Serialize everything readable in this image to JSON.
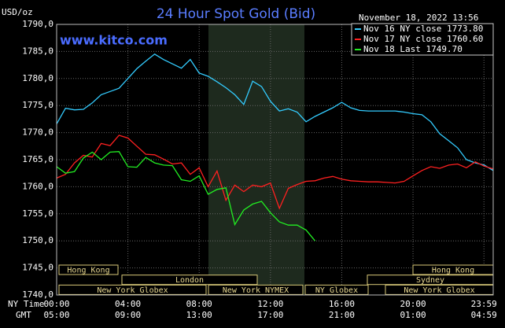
{
  "chart_data": {
    "type": "line",
    "title": "24 Hour Spot Gold (Bid)",
    "unit_label": "USD/oz",
    "timestamp": "November 18, 2022 13:56",
    "watermark": "www.kitco.com",
    "row_labels": [
      "NY Time",
      "GMT"
    ],
    "x": [
      0,
      0.5,
      1,
      1.5,
      2,
      2.5,
      3,
      3.5,
      4,
      4.5,
      5,
      5.5,
      6,
      6.5,
      7,
      7.5,
      8,
      8.5,
      9,
      9.5,
      10,
      10.5,
      11,
      11.5,
      12,
      12.5,
      13,
      13.5,
      14,
      14.5,
      15,
      15.5,
      16,
      16.5,
      17,
      17.5,
      18,
      18.5,
      19,
      19.5,
      20,
      20.5,
      21,
      21.5,
      22,
      22.5,
      23,
      23.5,
      24,
      24.5
    ],
    "xlim": [
      0,
      24.5
    ],
    "xticks": [
      {
        "value": 0,
        "label": "00:00"
      },
      {
        "value": 4,
        "label": "04:00"
      },
      {
        "value": 8,
        "label": "08:00"
      },
      {
        "value": 12,
        "label": "12:00"
      },
      {
        "value": 16,
        "label": "16:00"
      },
      {
        "value": 20,
        "label": "20:00"
      },
      {
        "value": 23.98,
        "label": "23:59"
      }
    ],
    "gmt_labels": [
      "05:00",
      "09:00",
      "13:00",
      "17:00",
      "21:00",
      "01:00",
      "04:59"
    ],
    "ylim": [
      1740,
      1790
    ],
    "yticks": [
      {
        "value": 1740,
        "label": "1740,0"
      },
      {
        "value": 1745,
        "label": "1745,0"
      },
      {
        "value": 1750,
        "label": "1750,0"
      },
      {
        "value": 1755,
        "label": "1755,0"
      },
      {
        "value": 1760,
        "label": "1760,0"
      },
      {
        "value": 1765,
        "label": "1765,0"
      },
      {
        "value": 1770,
        "label": "1770,0"
      },
      {
        "value": 1775,
        "label": "1775,0"
      },
      {
        "value": 1780,
        "label": "1780,0"
      },
      {
        "value": 1785,
        "label": "1785,0"
      },
      {
        "value": 1790,
        "label": "1790,0"
      }
    ],
    "grid": true,
    "series": [
      {
        "name": "Nov 16 NY close 1773.80",
        "color": "#33ccff",
        "values": [
          1771.6,
          1774.5,
          1774.2,
          1774.3,
          1775.5,
          1777.0,
          1777.6,
          1778.2,
          1780.0,
          1781.8,
          1783.2,
          1784.5,
          1783.5,
          1782.7,
          1781.9,
          1783.5,
          1781.0,
          1780.4,
          1779.4,
          1778.3,
          1777.0,
          1775.2,
          1779.5,
          1778.5,
          1775.8,
          1774.0,
          1774.4,
          1773.8,
          1772.0,
          1773.0,
          1773.8,
          1774.6,
          1775.6,
          1774.6,
          1774.1,
          1774.0,
          1774.0,
          1774.0,
          1774.0,
          1773.8,
          1773.5,
          1773.3,
          1772.0,
          1769.8,
          1768.5,
          1767.2,
          1765.0,
          1764.4,
          1764.0,
          1763.0
        ]
      },
      {
        "name": "Nov 17 NY close 1760.60",
        "color": "#ff2020",
        "values": [
          1761.6,
          1762.3,
          1764.4,
          1765.8,
          1765.5,
          1768.0,
          1767.6,
          1769.5,
          1769.0,
          1767.5,
          1766.0,
          1765.9,
          1765.1,
          1764.2,
          1764.4,
          1762.3,
          1763.5,
          1760.0,
          1762.9,
          1757.5,
          1760.3,
          1759.1,
          1760.3,
          1760.0,
          1760.7,
          1756.0,
          1759.7,
          1760.4,
          1761.0,
          1761.1,
          1761.6,
          1761.9,
          1761.4,
          1761.1,
          1761.0,
          1760.9,
          1760.9,
          1760.8,
          1760.7,
          1761.0,
          1762.0,
          1763.0,
          1763.7,
          1763.4,
          1764.0,
          1764.2,
          1763.5,
          1764.6,
          1763.8,
          1763.3
        ]
      },
      {
        "name": "Nov 18 Last 1749.70",
        "color": "#22ee22",
        "values": [
          1763.7,
          1762.5,
          1762.8,
          1765.3,
          1766.4,
          1765.0,
          1766.4,
          1766.5,
          1763.7,
          1763.6,
          1765.4,
          1764.4,
          1764.0,
          1763.9,
          1761.3,
          1761.0,
          1762.0,
          1758.6,
          1759.5,
          1759.8,
          1753.0,
          1755.7,
          1756.8,
          1757.3,
          1755.2,
          1753.5,
          1752.9,
          1752.9,
          1752.0,
          1750.0,
          null,
          null,
          null,
          null,
          null,
          null,
          null,
          null,
          null,
          null,
          null,
          null,
          null,
          null,
          null,
          null,
          null,
          null,
          null,
          null
        ]
      }
    ],
    "sessions": [
      "Hong Kong",
      "London",
      "New York Globex",
      "New York NYMEX",
      "NY Globex",
      "New York Globex",
      "Sydney",
      "Hong Kong"
    ]
  }
}
